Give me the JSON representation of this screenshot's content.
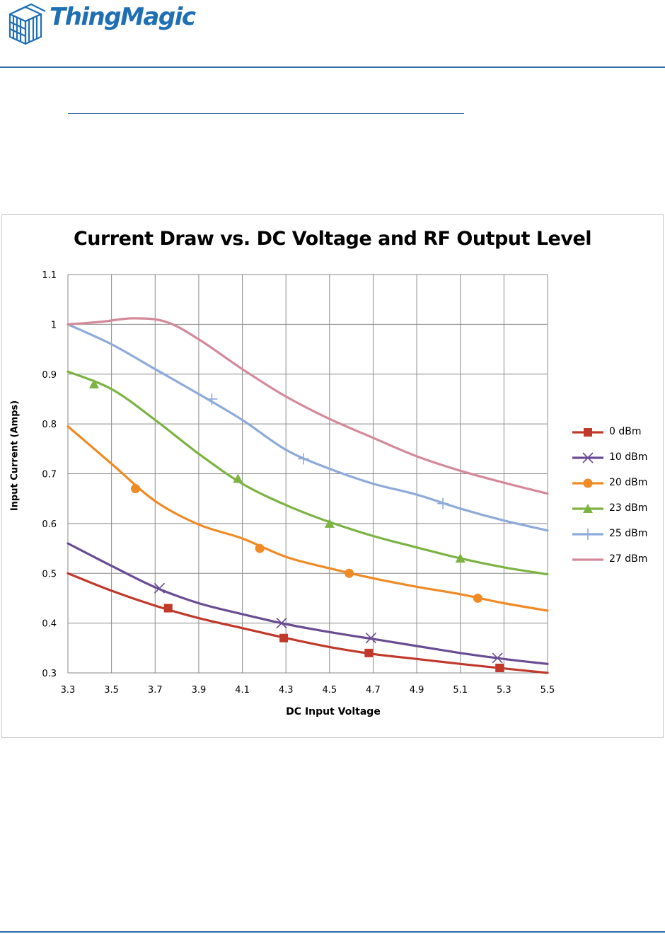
{
  "header": {
    "logo_text": "ThingMagic",
    "brand_color": "#1f6fb5",
    "rule_color": "#2f6aa8"
  },
  "chart_data": {
    "type": "line",
    "title": "Current Draw vs. DC Voltage and RF Output Level",
    "xlabel": "DC Input Voltage",
    "ylabel": "Input Current (Amps)",
    "xlim": [
      3.3,
      5.5
    ],
    "ylim": [
      0.3,
      1.1
    ],
    "xticks": [
      "3.3",
      "3.5",
      "3.7",
      "3.9",
      "4.1",
      "4.3",
      "4.5",
      "4.7",
      "4.9",
      "5.1",
      "5.3",
      "5.5"
    ],
    "yticks": [
      "0.3",
      "0.4",
      "0.5",
      "0.6",
      "0.7",
      "0.8",
      "0.9",
      "1",
      "1.1"
    ],
    "grid": true,
    "legend_position": "right",
    "series": [
      {
        "name": "0 dBm",
        "color": "#c0392b",
        "marker": "square",
        "points": [
          [
            3.3,
            0.5
          ],
          [
            3.5,
            0.465
          ],
          [
            3.7,
            0.435
          ],
          [
            3.9,
            0.41
          ],
          [
            4.1,
            0.39
          ],
          [
            4.3,
            0.37
          ],
          [
            4.5,
            0.352
          ],
          [
            4.7,
            0.338
          ],
          [
            4.9,
            0.328
          ],
          [
            5.1,
            0.318
          ],
          [
            5.3,
            0.309
          ],
          [
            5.5,
            0.3
          ]
        ],
        "markers": [
          [
            3.76,
            0.43
          ],
          [
            4.29,
            0.37
          ],
          [
            4.68,
            0.34
          ],
          [
            5.28,
            0.31
          ]
        ]
      },
      {
        "name": "10 dBm",
        "color": "#6a4c93",
        "marker": "x",
        "points": [
          [
            3.3,
            0.56
          ],
          [
            3.5,
            0.515
          ],
          [
            3.7,
            0.472
          ],
          [
            3.9,
            0.44
          ],
          [
            4.1,
            0.418
          ],
          [
            4.3,
            0.398
          ],
          [
            4.5,
            0.382
          ],
          [
            4.7,
            0.368
          ],
          [
            4.9,
            0.354
          ],
          [
            5.1,
            0.34
          ],
          [
            5.3,
            0.328
          ],
          [
            5.5,
            0.318
          ]
        ],
        "markers": [
          [
            3.72,
            0.47
          ],
          [
            4.28,
            0.4
          ],
          [
            4.69,
            0.37
          ],
          [
            5.27,
            0.33
          ]
        ]
      },
      {
        "name": "20 dBm",
        "color": "#f08a24",
        "marker": "circle",
        "points": [
          [
            3.3,
            0.795
          ],
          [
            3.5,
            0.72
          ],
          [
            3.7,
            0.645
          ],
          [
            3.9,
            0.598
          ],
          [
            4.1,
            0.57
          ],
          [
            4.3,
            0.533
          ],
          [
            4.5,
            0.51
          ],
          [
            4.7,
            0.49
          ],
          [
            4.9,
            0.473
          ],
          [
            5.1,
            0.458
          ],
          [
            5.3,
            0.44
          ],
          [
            5.5,
            0.425
          ]
        ],
        "markers": [
          [
            3.61,
            0.67
          ],
          [
            4.18,
            0.55
          ],
          [
            4.59,
            0.5
          ],
          [
            5.18,
            0.45
          ]
        ]
      },
      {
        "name": "23 dBm",
        "color": "#7cb342",
        "marker": "triangle",
        "points": [
          [
            3.3,
            0.905
          ],
          [
            3.5,
            0.87
          ],
          [
            3.7,
            0.808
          ],
          [
            3.9,
            0.74
          ],
          [
            4.1,
            0.68
          ],
          [
            4.3,
            0.637
          ],
          [
            4.5,
            0.603
          ],
          [
            4.7,
            0.575
          ],
          [
            4.9,
            0.552
          ],
          [
            5.1,
            0.53
          ],
          [
            5.3,
            0.512
          ],
          [
            5.5,
            0.498
          ]
        ],
        "markers": [
          [
            3.42,
            0.88
          ],
          [
            4.08,
            0.69
          ],
          [
            4.5,
            0.6
          ],
          [
            5.1,
            0.53
          ]
        ]
      },
      {
        "name": "25 dBm",
        "color": "#8eaadb",
        "marker": "plus",
        "points": [
          [
            3.3,
            1.0
          ],
          [
            3.5,
            0.96
          ],
          [
            3.7,
            0.91
          ],
          [
            3.9,
            0.86
          ],
          [
            4.1,
            0.808
          ],
          [
            4.3,
            0.748
          ],
          [
            4.5,
            0.71
          ],
          [
            4.7,
            0.68
          ],
          [
            4.9,
            0.658
          ],
          [
            5.1,
            0.63
          ],
          [
            5.3,
            0.606
          ],
          [
            5.5,
            0.586
          ]
        ],
        "markers": [
          [
            3.96,
            0.85
          ],
          [
            4.38,
            0.73
          ],
          [
            5.02,
            0.64
          ]
        ]
      },
      {
        "name": "27 dBm",
        "color": "#d4899a",
        "marker": "none",
        "points": [
          [
            3.3,
            1.0
          ],
          [
            3.45,
            1.005
          ],
          [
            3.6,
            1.012
          ],
          [
            3.75,
            1.005
          ],
          [
            3.9,
            0.97
          ],
          [
            4.1,
            0.91
          ],
          [
            4.3,
            0.855
          ],
          [
            4.5,
            0.81
          ],
          [
            4.7,
            0.772
          ],
          [
            4.9,
            0.735
          ],
          [
            5.1,
            0.706
          ],
          [
            5.3,
            0.682
          ],
          [
            5.5,
            0.66
          ]
        ],
        "markers": []
      }
    ]
  }
}
